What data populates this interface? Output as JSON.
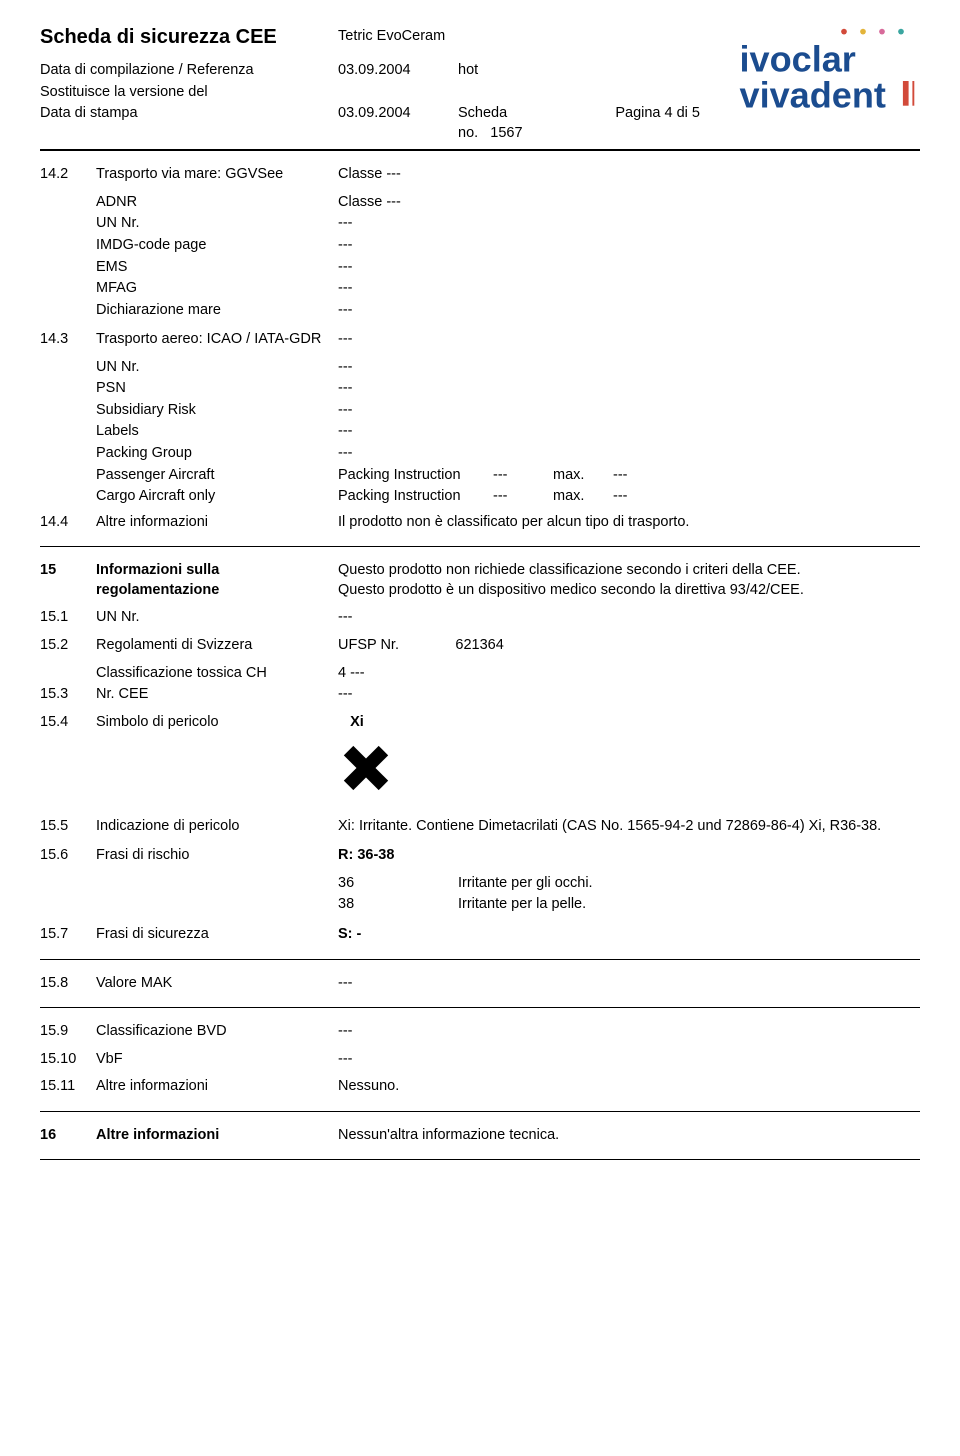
{
  "header": {
    "doc_title": "Scheda di sicurezza CEE",
    "product": "Tetric EvoCeram",
    "row1_label": "Data di compilazione / Referenza",
    "row1_date": "03.09.2004",
    "row1_ref": "hot",
    "row2_label": "Sostituisce la versione del",
    "row3_label": "Data di stampa",
    "row3_date": "03.09.2004",
    "row3_scheda_label": "Scheda no.",
    "row3_scheda_no": "1567",
    "page_label": "Pagina  4  di  5",
    "logo_text_top": "ivoclar",
    "logo_text_bottom": "vivadent",
    "logo_colors": {
      "blue": "#1b4c8f",
      "red": "#d24a3a",
      "yellow": "#e3b43a",
      "pink": "#d76a9a",
      "teal": "#3aa6a0"
    }
  },
  "s14_2": {
    "num": "14.2",
    "label": "Trasporto via mare:  GGVSee",
    "value": "Classe  ---",
    "rows": [
      {
        "k": "ADNR",
        "v": "Classe  ---"
      },
      {
        "k": "UN Nr.",
        "v": "---"
      },
      {
        "k": "IMDG-code page",
        "v": "---"
      },
      {
        "k": "EMS",
        "v": "---"
      },
      {
        "k": "MFAG",
        "v": "---"
      },
      {
        "k": "Dichiarazione mare",
        "v": "---"
      }
    ]
  },
  "s14_3": {
    "num": "14.3",
    "label": "Trasporto aereo: ICAO / IATA-GDR",
    "value": "---",
    "rows": [
      {
        "k": "UN Nr.",
        "v": "---"
      },
      {
        "k": "PSN",
        "v": "---"
      },
      {
        "k": "Subsidiary Risk",
        "v": "---"
      },
      {
        "k": "Labels",
        "v": "---"
      },
      {
        "k": "Packing Group",
        "v": "---"
      }
    ],
    "pack_rows": [
      {
        "k": "Passenger Aircraft",
        "a": "Packing Instruction",
        "b": "---",
        "c": "max.",
        "d": "---"
      },
      {
        "k": "Cargo Aircraft only",
        "a": "Packing Instruction",
        "b": "---",
        "c": "max.",
        "d": "---"
      }
    ]
  },
  "s14_4": {
    "num": "14.4",
    "label": "Altre informazioni",
    "value": "Il prodotto non è classificato per alcun tipo di trasporto."
  },
  "s15": {
    "num": "15",
    "label": "Informazioni sulla regolamentazione",
    "value": "Questo prodotto non richiede classificazione secondo i criteri della CEE.\nQuesto prodotto è un dispositivo medico secondo la direttiva 93/42/CEE."
  },
  "s15_1": {
    "num": "15.1",
    "label": "UN Nr.",
    "value": "---"
  },
  "s15_2": {
    "num": "15.2",
    "label": "Regolamenti di Svizzera",
    "ufsp_label": "UFSP Nr.",
    "ufsp_no": "621364",
    "tox_label": "Classificazione tossica CH",
    "tox_val": "4   ---"
  },
  "s15_3": {
    "num": "15.3",
    "label": "Nr. CEE",
    "value": "---"
  },
  "s15_4": {
    "num": "15.4",
    "label": "Simbolo di pericolo",
    "value": "Xi"
  },
  "s15_5": {
    "num": "15.5",
    "label": "Indicazione di pericolo",
    "value": "Xi: Irritante. Contiene Dimetacrilati (CAS No. 1565-94-2 und 72869-86-4) Xi, R36-38."
  },
  "s15_6": {
    "num": "15.6",
    "label": "Frasi di rischio",
    "value": "R: 36-38",
    "phrases": [
      {
        "code": "36",
        "text": "Irritante per gli occhi."
      },
      {
        "code": "38",
        "text": "Irritante per la pelle."
      }
    ]
  },
  "s15_7": {
    "num": "15.7",
    "label": "Frasi di sicurezza",
    "value": "S: -"
  },
  "s15_8": {
    "num": "15.8",
    "label": "Valore MAK",
    "value": "---"
  },
  "s15_9": {
    "num": "15.9",
    "label": "Classificazione BVD",
    "value": "---"
  },
  "s15_10": {
    "num": "15.10",
    "label": "VbF",
    "value": "---"
  },
  "s15_11": {
    "num": "15.11",
    "label": "Altre informazioni",
    "value": "Nessuno."
  },
  "s16": {
    "num": "16",
    "label": "Altre informazioni",
    "value": "Nessun'altra informazione tecnica."
  }
}
